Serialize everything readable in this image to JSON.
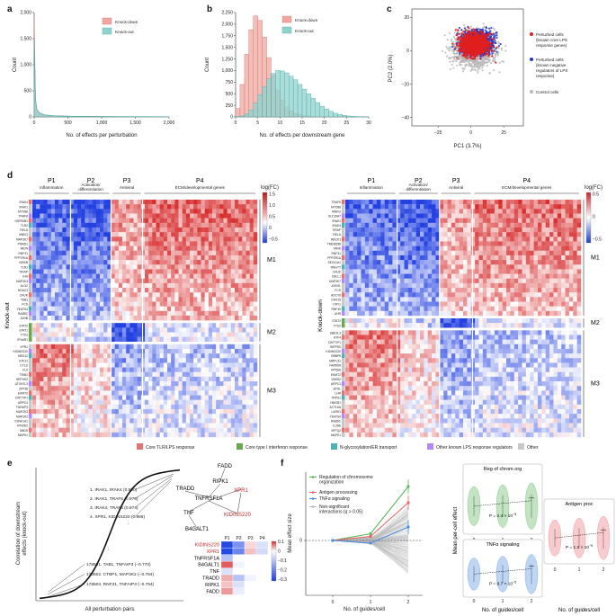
{
  "colors": {
    "knockdown": "#f1a79f",
    "knockout": "#8fd3cf",
    "perturbed_core": "#e12020",
    "perturbed_neg": "#2236c9",
    "control": "#b8b8b8",
    "heat_pos": "#d32f2f",
    "heat_neg": "#2442d8",
    "cat_core": "#e57373",
    "cat_ifn": "#6aa84f",
    "cat_nglyc": "#4bb3b3",
    "cat_other_known": "#b388ff",
    "cat_other": "#c8c8c8",
    "reg_chrom": "#5cb85c",
    "antigen": "#e8636b",
    "tnfa": "#4a90e2",
    "nonsig": "#bbbbbb"
  },
  "panels": {
    "a": "a",
    "b": "b",
    "c": "c",
    "d": "d",
    "e": "e",
    "f": "f"
  },
  "chart_data": [
    {
      "panel": "a",
      "type": "area",
      "xlabel": "No. of effects per perturbation",
      "ylabel": "Count",
      "xlim": [
        0,
        2000
      ],
      "ylim": [
        0,
        2000
      ],
      "x_ticks": [
        "0",
        "500",
        "1,000",
        "1,500",
        "2,000"
      ],
      "y_ticks": [
        "0",
        "500",
        "1,000",
        "1,500",
        "2,000"
      ],
      "legend": [
        "Knock-down",
        "Knock-out"
      ],
      "legend_position": "top-right",
      "series": [
        {
          "name": "Knock-down",
          "x": [
            0,
            20,
            40,
            80,
            150,
            300,
            600,
            1000,
            1500,
            2000
          ],
          "values": [
            1900,
            300,
            120,
            60,
            30,
            18,
            10,
            6,
            4,
            3
          ]
        },
        {
          "name": "Knock-out",
          "x": [
            0,
            20,
            40,
            80,
            150,
            300,
            600,
            1000,
            1500,
            2000
          ],
          "values": [
            1500,
            350,
            150,
            80,
            40,
            22,
            12,
            7,
            5,
            3
          ]
        }
      ]
    },
    {
      "panel": "b",
      "type": "bar",
      "xlabel": "No. of effects per downstream gene",
      "ylabel": "Count",
      "xlim": [
        0,
        30
      ],
      "ylim": [
        0,
        2250
      ],
      "x_ticks": [
        "0",
        "5",
        "10",
        "15",
        "20",
        "25",
        "30"
      ],
      "y_ticks": [
        "0",
        "250",
        "500",
        "750",
        "1,000",
        "1,250",
        "1,500",
        "1,750",
        "2,000",
        "2,250"
      ],
      "legend": [
        "Knock-down",
        "Knock-out"
      ],
      "legend_position": "top-right",
      "bin_width": 1,
      "series": [
        {
          "name": "Knock-down",
          "x": [
            0,
            1,
            2,
            3,
            4,
            5,
            6,
            7,
            8,
            9,
            10,
            11,
            12,
            13,
            14,
            15,
            16,
            17,
            18,
            19,
            20,
            21,
            22,
            23,
            24,
            25,
            26,
            27,
            28,
            29
          ],
          "values": [
            180,
            700,
            1350,
            1880,
            2180,
            2080,
            1720,
            1280,
            900,
            580,
            360,
            220,
            130,
            80,
            50,
            30,
            18,
            10,
            6,
            3,
            2,
            1,
            1,
            0,
            0,
            0,
            0,
            0,
            0,
            0
          ]
        },
        {
          "name": "Knock-out",
          "x": [
            0,
            1,
            2,
            3,
            4,
            5,
            6,
            7,
            8,
            9,
            10,
            11,
            12,
            13,
            14,
            15,
            16,
            17,
            18,
            19,
            20,
            21,
            22,
            23,
            24,
            25,
            26,
            27,
            28,
            29
          ],
          "values": [
            5,
            20,
            60,
            150,
            300,
            480,
            650,
            820,
            940,
            1000,
            990,
            950,
            880,
            800,
            700,
            600,
            500,
            400,
            310,
            230,
            170,
            120,
            80,
            55,
            35,
            20,
            12,
            7,
            4,
            2
          ]
        }
      ]
    },
    {
      "panel": "c",
      "type": "scatter",
      "xlabel": "PC1 (3.7%)",
      "ylabel": "PC2 (2.0%)",
      "xlim": [
        -45,
        40
      ],
      "ylim": [
        -45,
        25
      ],
      "x_ticks": [
        "−25",
        "0",
        "25"
      ],
      "y_ticks": [
        "20",
        "0",
        "−20",
        "−40"
      ],
      "legend": [
        "Perturbed cells (known core LPS response genes)",
        "Perturbed cells (known negative regulators of LPS response)",
        "Control cells"
      ],
      "legend_position": "right"
    },
    {
      "panel": "e",
      "type": "scatter",
      "xlabel": "All perturbation pairs",
      "ylabel": "Correlation of downstream effects (knock-out)",
      "annotations_top": [
        "1. IRAK1, IRAK4 (0.990)",
        "2. IRAK1, TRAF6 (0.976)",
        "3. IRAK4, TRAF6 (0.974)",
        "4. XPR1, KIDINS220 (0.969)"
      ],
      "annotations_bottom": [
        "178501. TAB1, TNFAIP3 (−0.770)",
        "178502. CTBP1, MAP2K2 (−0.784)",
        "178503. RNF31, TNFAIP3 (−0.794)"
      ]
    },
    {
      "panel": "f",
      "type": "line",
      "xlabel": "No. of guides/cell",
      "ylabel": "Mean effect size",
      "x": [
        0,
        1,
        2
      ],
      "x_ticks": [
        "0",
        "1",
        "2"
      ],
      "y_ticks": [
        "0"
      ],
      "legend": [
        "Regulation of chromosome organization",
        "Antigen processing",
        "TNFα signaling",
        "Non-significant interactions (q > 0.05)"
      ],
      "series": [
        {
          "name": "Regulation of chromosome organization",
          "values": [
            0,
            0.05,
            0.4
          ]
        },
        {
          "name": "Antigen processing",
          "values": [
            0,
            0.03,
            0.28
          ]
        },
        {
          "name": "TNFα signaling",
          "values": [
            0,
            -0.02,
            0.1
          ]
        }
      ]
    }
  ],
  "panel_d": {
    "left": {
      "groups": [
        "P1",
        "P2",
        "P3",
        "P4"
      ],
      "group_sub": [
        "Inflammation",
        "Activation/\ndifferentiation",
        "Antiviral",
        "ECM/developmental genes"
      ],
      "sub_p2_line1": "Activation/",
      "sub_p2_line2": "differentiation",
      "scale_title": "log(FC)",
      "scale_ticks": [
        "1.5",
        "1.0",
        "0.5",
        "0",
        "−0.5"
      ],
      "side_label": "Knock-out",
      "modules": [
        "M1",
        "M2",
        "M3"
      ],
      "genes": [
        "IRAK4",
        "IRAK1",
        "MYD88",
        "TRAF6",
        "HSP90B1",
        "TLR2",
        "RELA",
        "IKBKG",
        "MAP3K7",
        "PSMD1",
        "MIDN",
        "RNF31",
        "PPP2R1A",
        "IKBKB",
        "TLR1",
        "TIRAP",
        "IHH",
        "MAP3K3",
        "ALG2",
        "HDAC3",
        "CHUK",
        "TAB1",
        "FCS",
        "YEATS4",
        "RAB5C",
        "JUNB",
        "STAT2",
        "STAT1",
        "TYK2",
        "IFNAR1",
        "XPR1",
        "KIDINS220",
        "MED12",
        "STK11",
        "CYLD",
        "FLII",
        "TRIB1",
        "SEPHS2",
        "ATXN7L3",
        "ZFP36",
        "EHMT2",
        "DNTTIP1",
        "ARPC4",
        "TNFAIP3",
        "MAP2K3",
        "MAP2K2",
        "CSNK1A1",
        "RFWD2",
        "SBDS",
        "MAPK1"
      ]
    },
    "right": {
      "groups": [
        "P1",
        "P2",
        "P3",
        "P4"
      ],
      "group_sub": [
        "Inflammation",
        "Activation/\ndifferentiation",
        "Antiviral",
        "ECM/developmental genes"
      ],
      "sub_p2_line1": "Activation/",
      "sub_p2_line2": "differentiation",
      "scale_title": "log(FC)",
      "scale_ticks": [
        "0.5",
        "0",
        "−0.5"
      ],
      "side_label": "Knock-down",
      "modules": [
        "M1",
        "M2",
        "M3"
      ],
      "genes": [
        "TRAF6",
        "MYD88",
        "IKBKG",
        "SLC39A7",
        "IRAK1",
        "IRAK4",
        "TIRAP",
        "RELA",
        "RBCK1",
        "TMEM258",
        "TANK",
        "RNF31",
        "PPP2R1A",
        "SEC61A1",
        "RNGTT",
        "CHUK",
        "CBLL1",
        "MAP3K7",
        "ASH2L",
        "FCS",
        "ADCY6",
        "DHX15",
        "CRY1",
        "RNF40",
        "AHR",
        "STAT2",
        "TYK2",
        "UBE2L3",
        "ATF4",
        "DNTTIP1",
        "INPP5D",
        "KIDINS220",
        "RBBP5",
        "MRPL51",
        "FAM50A",
        "RPS6A",
        "EHMT2",
        "VARS2",
        "ARPC4",
        "BYSL",
        "LHR",
        "TRPS1",
        "HMGB1",
        "ACTL6A",
        "LARS1",
        "YEATS4",
        "RAB5C",
        "IL28A",
        "SFPQ2",
        "MAPK1"
      ]
    },
    "legend": [
      "Core TLR/LPS response",
      "Core type I interferon response",
      "N-glycosylation/ER transport",
      "Other known LPS response regulators",
      "Other"
    ]
  },
  "panel_e_network": {
    "nodes": [
      "FADD",
      "RIPK1",
      "TRADD",
      "TNFRSF1A",
      "XPR1",
      "KIDINS220",
      "TNF",
      "B4GALT1"
    ],
    "highlight": [
      "XPR1",
      "KIDINS220"
    ],
    "heat_cols": [
      "P1",
      "P2",
      "P3",
      "P4"
    ],
    "heat_rows": [
      "KIDINS220",
      "XPR1",
      "TNFRSF1A",
      "B4GALT1",
      "TNF",
      "TRADD",
      "RIPK1",
      "FADD"
    ],
    "heat_values": [
      [
        -0.3,
        -0.18,
        0.02,
        -0.05
      ],
      [
        -0.32,
        -0.2,
        0.03,
        -0.06
      ],
      [
        -0.1,
        0.0,
        0.0,
        0.0
      ],
      [
        0.08,
        -0.02,
        0.0,
        0.0
      ],
      [
        -0.05,
        0.0,
        0.0,
        0.0
      ],
      [
        0.04,
        -0.1,
        -0.02,
        0.0
      ],
      [
        0.03,
        -0.05,
        0.0,
        0.0
      ],
      [
        0.05,
        -0.03,
        0.0,
        0.0
      ]
    ],
    "scale_ticks": [
      "0.1",
      "0",
      "−0.1",
      "−0.2",
      "−0.3"
    ]
  },
  "panel_f_violin": {
    "ylabel": "Mean per-cell effect",
    "xlabel": "No. of guides/cell",
    "x_ticks": [
      "0",
      "1",
      "2"
    ],
    "panels": [
      {
        "title": "Reg of chrom org",
        "pval": "P = 2.4 × 10",
        "exp": "−5"
      },
      {
        "title": "TNFα signaling",
        "pval": "P = 8.7 × 10",
        "exp": "−5"
      },
      {
        "title": "Antigen proc",
        "pval": "P = 1.2 × 10",
        "exp": "−5"
      }
    ]
  }
}
